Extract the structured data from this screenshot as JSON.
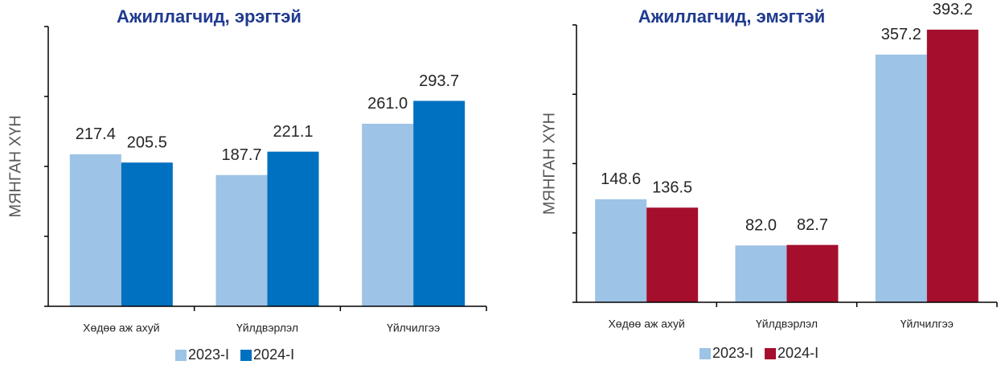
{
  "chart_data": [
    {
      "type": "bar",
      "title": "Ажиллагчид, эрэгтэй",
      "y_label": "МЯНГАН ХҮН",
      "categories": [
        "Хөдөө аж ахуй",
        "Үйлдвэрлэл",
        "Үйлчилгээ"
      ],
      "series": [
        {
          "name": "2023-I",
          "color": "#9dc3e6",
          "values": [
            217.4,
            187.7,
            261
          ],
          "value_labels": [
            "217.4",
            "187.7",
            "261.0"
          ]
        },
        {
          "name": "2024-I",
          "color": "#0070c0",
          "values": [
            205.5,
            221.1,
            293.7
          ],
          "value_labels": [
            "205.5",
            "221.1",
            "293.7"
          ]
        }
      ],
      "ylim": [
        0,
        400
      ],
      "yticks": [
        0,
        100,
        200,
        300,
        400
      ]
    },
    {
      "type": "bar",
      "title": "Ажиллагчид, эмэгтэй",
      "y_label": "МЯНГАН ХҮН",
      "categories": [
        "Хөдөө аж ахуй",
        "Үйлдвэрлэл",
        "Үйлчилгээ"
      ],
      "series": [
        {
          "name": "2023-I",
          "color": "#9dc3e6",
          "values": [
            148.6,
            82,
            357.2
          ],
          "value_labels": [
            "148.6",
            "82.0",
            "357.2"
          ]
        },
        {
          "name": "2024-I",
          "color": "#a50f2d",
          "values": [
            136.5,
            82.7,
            393.2
          ],
          "value_labels": [
            "136.5",
            "82.7",
            "393.2"
          ]
        }
      ],
      "ylim": [
        0,
        400
      ],
      "yticks": [
        0,
        100,
        200,
        300,
        400
      ]
    }
  ]
}
